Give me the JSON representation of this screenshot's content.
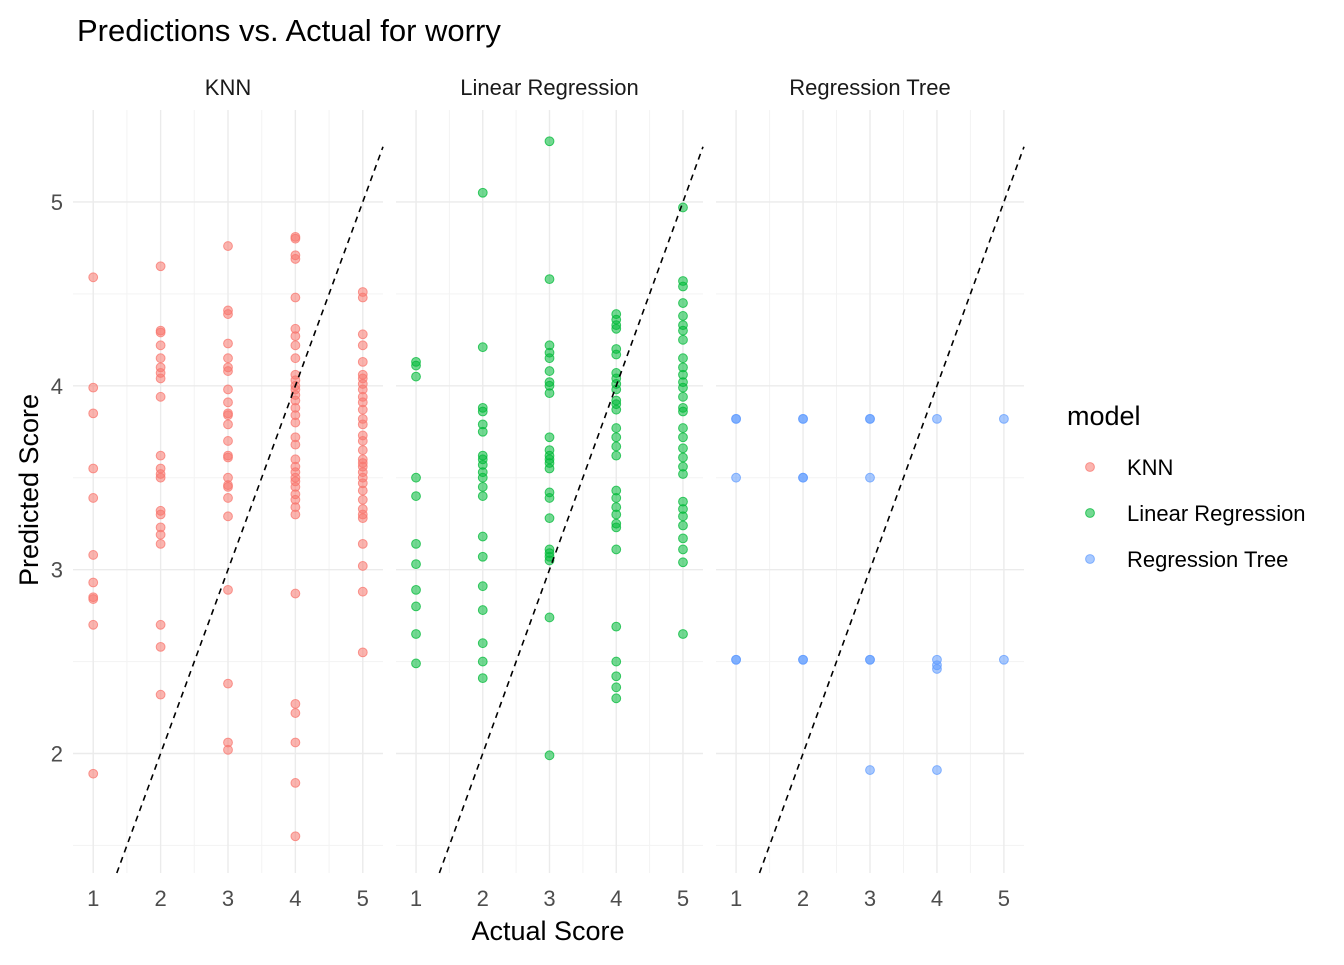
{
  "chart_data": {
    "type": "scatter",
    "title": "Predictions vs. Actual for worry",
    "xlabel": "Actual Score",
    "ylabel": "Predicted Score",
    "xlim": [
      0.7,
      5.3
    ],
    "ylim": [
      1.35,
      5.5
    ],
    "x_ticks": [
      1,
      2,
      3,
      4,
      5
    ],
    "y_ticks": [
      2,
      3,
      4,
      5
    ],
    "grid": true,
    "reference_line": "y = x (dashed)",
    "legend": {
      "title": "model",
      "position": "right",
      "entries": [
        "KNN",
        "Linear Regression",
        "Regression Tree"
      ]
    },
    "colors": {
      "KNN": "#F8766D",
      "Linear Regression": "#00BA38",
      "Regression Tree": "#619CFF"
    },
    "series": [
      {
        "name": "KNN",
        "points": [
          [
            1,
            4.59
          ],
          [
            1,
            3.99
          ],
          [
            1,
            3.85
          ],
          [
            1,
            3.55
          ],
          [
            1,
            3.39
          ],
          [
            1,
            3.08
          ],
          [
            1,
            2.93
          ],
          [
            1,
            2.85
          ],
          [
            1,
            2.84
          ],
          [
            1,
            2.7
          ],
          [
            1,
            1.89
          ],
          [
            2,
            4.65
          ],
          [
            2,
            4.3
          ],
          [
            2,
            4.29
          ],
          [
            2,
            4.22
          ],
          [
            2,
            4.15
          ],
          [
            2,
            4.1
          ],
          [
            2,
            4.07
          ],
          [
            2,
            4.04
          ],
          [
            2,
            3.94
          ],
          [
            2,
            3.62
          ],
          [
            2,
            3.55
          ],
          [
            2,
            3.52
          ],
          [
            2,
            3.5
          ],
          [
            2,
            3.32
          ],
          [
            2,
            3.3
          ],
          [
            2,
            3.23
          ],
          [
            2,
            3.19
          ],
          [
            2,
            3.14
          ],
          [
            2,
            2.7
          ],
          [
            2,
            2.58
          ],
          [
            2,
            2.32
          ],
          [
            3,
            4.76
          ],
          [
            3,
            4.41
          ],
          [
            3,
            4.39
          ],
          [
            3,
            4.23
          ],
          [
            3,
            4.15
          ],
          [
            3,
            4.1
          ],
          [
            3,
            4.08
          ],
          [
            3,
            3.98
          ],
          [
            3,
            3.91
          ],
          [
            3,
            3.85
          ],
          [
            3,
            3.84
          ],
          [
            3,
            3.79
          ],
          [
            3,
            3.7
          ],
          [
            3,
            3.62
          ],
          [
            3,
            3.61
          ],
          [
            3,
            3.5
          ],
          [
            3,
            3.46
          ],
          [
            3,
            3.45
          ],
          [
            3,
            3.39
          ],
          [
            3,
            3.29
          ],
          [
            3,
            2.89
          ],
          [
            3,
            2.38
          ],
          [
            3,
            2.06
          ],
          [
            3,
            2.02
          ],
          [
            4,
            4.81
          ],
          [
            4,
            4.8
          ],
          [
            4,
            4.71
          ],
          [
            4,
            4.69
          ],
          [
            4,
            4.48
          ],
          [
            4,
            4.31
          ],
          [
            4,
            4.27
          ],
          [
            4,
            4.22
          ],
          [
            4,
            4.15
          ],
          [
            4,
            4.06
          ],
          [
            4,
            4.03
          ],
          [
            4,
            4.0
          ],
          [
            4,
            3.98
          ],
          [
            4,
            3.95
          ],
          [
            4,
            3.92
          ],
          [
            4,
            3.88
          ],
          [
            4,
            3.84
          ],
          [
            4,
            3.8
          ],
          [
            4,
            3.72
          ],
          [
            4,
            3.68
          ],
          [
            4,
            3.6
          ],
          [
            4,
            3.56
          ],
          [
            4,
            3.53
          ],
          [
            4,
            3.5
          ],
          [
            4,
            3.48
          ],
          [
            4,
            3.45
          ],
          [
            4,
            3.41
          ],
          [
            4,
            3.38
          ],
          [
            4,
            3.34
          ],
          [
            4,
            3.3
          ],
          [
            4,
            2.87
          ],
          [
            4,
            2.27
          ],
          [
            4,
            2.22
          ],
          [
            4,
            2.06
          ],
          [
            4,
            1.84
          ],
          [
            4,
            1.55
          ],
          [
            5,
            4.51
          ],
          [
            5,
            4.48
          ],
          [
            5,
            4.28
          ],
          [
            5,
            4.22
          ],
          [
            5,
            4.13
          ],
          [
            5,
            4.06
          ],
          [
            5,
            4.04
          ],
          [
            5,
            4.01
          ],
          [
            5,
            3.98
          ],
          [
            5,
            3.94
          ],
          [
            5,
            3.91
          ],
          [
            5,
            3.87
          ],
          [
            5,
            3.82
          ],
          [
            5,
            3.79
          ],
          [
            5,
            3.73
          ],
          [
            5,
            3.7
          ],
          [
            5,
            3.65
          ],
          [
            5,
            3.6
          ],
          [
            5,
            3.58
          ],
          [
            5,
            3.56
          ],
          [
            5,
            3.53
          ],
          [
            5,
            3.5
          ],
          [
            5,
            3.47
          ],
          [
            5,
            3.43
          ],
          [
            5,
            3.38
          ],
          [
            5,
            3.33
          ],
          [
            5,
            3.3
          ],
          [
            5,
            3.28
          ],
          [
            5,
            3.14
          ],
          [
            5,
            3.02
          ],
          [
            5,
            2.88
          ],
          [
            5,
            2.55
          ]
        ]
      },
      {
        "name": "Linear Regression",
        "points": [
          [
            1,
            4.13
          ],
          [
            1,
            4.11
          ],
          [
            1,
            4.05
          ],
          [
            1,
            3.5
          ],
          [
            1,
            3.4
          ],
          [
            1,
            3.14
          ],
          [
            1,
            3.03
          ],
          [
            1,
            2.89
          ],
          [
            1,
            2.8
          ],
          [
            1,
            2.65
          ],
          [
            1,
            2.49
          ],
          [
            2,
            5.05
          ],
          [
            2,
            4.21
          ],
          [
            2,
            3.88
          ],
          [
            2,
            3.86
          ],
          [
            2,
            3.79
          ],
          [
            2,
            3.75
          ],
          [
            2,
            3.62
          ],
          [
            2,
            3.6
          ],
          [
            2,
            3.57
          ],
          [
            2,
            3.53
          ],
          [
            2,
            3.5
          ],
          [
            2,
            3.45
          ],
          [
            2,
            3.4
          ],
          [
            2,
            3.18
          ],
          [
            2,
            3.07
          ],
          [
            2,
            2.91
          ],
          [
            2,
            2.78
          ],
          [
            2,
            2.6
          ],
          [
            2,
            2.5
          ],
          [
            2,
            2.41
          ],
          [
            3,
            5.33
          ],
          [
            3,
            4.58
          ],
          [
            3,
            4.22
          ],
          [
            3,
            4.18
          ],
          [
            3,
            4.15
          ],
          [
            3,
            4.08
          ],
          [
            3,
            4.02
          ],
          [
            3,
            4.0
          ],
          [
            3,
            3.96
          ],
          [
            3,
            3.72
          ],
          [
            3,
            3.65
          ],
          [
            3,
            3.62
          ],
          [
            3,
            3.6
          ],
          [
            3,
            3.58
          ],
          [
            3,
            3.55
          ],
          [
            3,
            3.42
          ],
          [
            3,
            3.39
          ],
          [
            3,
            3.28
          ],
          [
            3,
            3.11
          ],
          [
            3,
            3.09
          ],
          [
            3,
            3.07
          ],
          [
            3,
            3.05
          ],
          [
            3,
            2.74
          ],
          [
            3,
            1.99
          ],
          [
            4,
            4.39
          ],
          [
            4,
            4.36
          ],
          [
            4,
            4.33
          ],
          [
            4,
            4.31
          ],
          [
            4,
            4.2
          ],
          [
            4,
            4.17
          ],
          [
            4,
            4.07
          ],
          [
            4,
            4.04
          ],
          [
            4,
            4.01
          ],
          [
            4,
            3.98
          ],
          [
            4,
            3.92
          ],
          [
            4,
            3.9
          ],
          [
            4,
            3.87
          ],
          [
            4,
            3.77
          ],
          [
            4,
            3.72
          ],
          [
            4,
            3.67
          ],
          [
            4,
            3.62
          ],
          [
            4,
            3.43
          ],
          [
            4,
            3.39
          ],
          [
            4,
            3.34
          ],
          [
            4,
            3.3
          ],
          [
            4,
            3.25
          ],
          [
            4,
            3.23
          ],
          [
            4,
            3.11
          ],
          [
            4,
            2.69
          ],
          [
            4,
            2.5
          ],
          [
            4,
            2.42
          ],
          [
            4,
            2.36
          ],
          [
            4,
            2.3
          ],
          [
            5,
            4.97
          ],
          [
            5,
            4.57
          ],
          [
            5,
            4.54
          ],
          [
            5,
            4.45
          ],
          [
            5,
            4.38
          ],
          [
            5,
            4.33
          ],
          [
            5,
            4.3
          ],
          [
            5,
            4.25
          ],
          [
            5,
            4.15
          ],
          [
            5,
            4.1
          ],
          [
            5,
            4.06
          ],
          [
            5,
            4.02
          ],
          [
            5,
            3.99
          ],
          [
            5,
            3.94
          ],
          [
            5,
            3.88
          ],
          [
            5,
            3.86
          ],
          [
            5,
            3.77
          ],
          [
            5,
            3.72
          ],
          [
            5,
            3.66
          ],
          [
            5,
            3.61
          ],
          [
            5,
            3.56
          ],
          [
            5,
            3.52
          ],
          [
            5,
            3.37
          ],
          [
            5,
            3.33
          ],
          [
            5,
            3.29
          ],
          [
            5,
            3.24
          ],
          [
            5,
            3.17
          ],
          [
            5,
            3.11
          ],
          [
            5,
            3.04
          ],
          [
            5,
            2.65
          ]
        ]
      },
      {
        "name": "Regression Tree",
        "points": [
          [
            1,
            3.82
          ],
          [
            1,
            3.82
          ],
          [
            1,
            3.5
          ],
          [
            1,
            2.51
          ],
          [
            1,
            2.51
          ],
          [
            2,
            3.82
          ],
          [
            2,
            3.82
          ],
          [
            2,
            3.5
          ],
          [
            2,
            3.5
          ],
          [
            2,
            2.51
          ],
          [
            2,
            2.51
          ],
          [
            3,
            3.82
          ],
          [
            3,
            3.82
          ],
          [
            3,
            3.5
          ],
          [
            3,
            2.51
          ],
          [
            3,
            2.51
          ],
          [
            3,
            1.91
          ],
          [
            4,
            3.82
          ],
          [
            4,
            2.51
          ],
          [
            4,
            2.48
          ],
          [
            4,
            2.46
          ],
          [
            4,
            1.91
          ],
          [
            5,
            3.82
          ],
          [
            5,
            2.51
          ]
        ]
      }
    ]
  }
}
